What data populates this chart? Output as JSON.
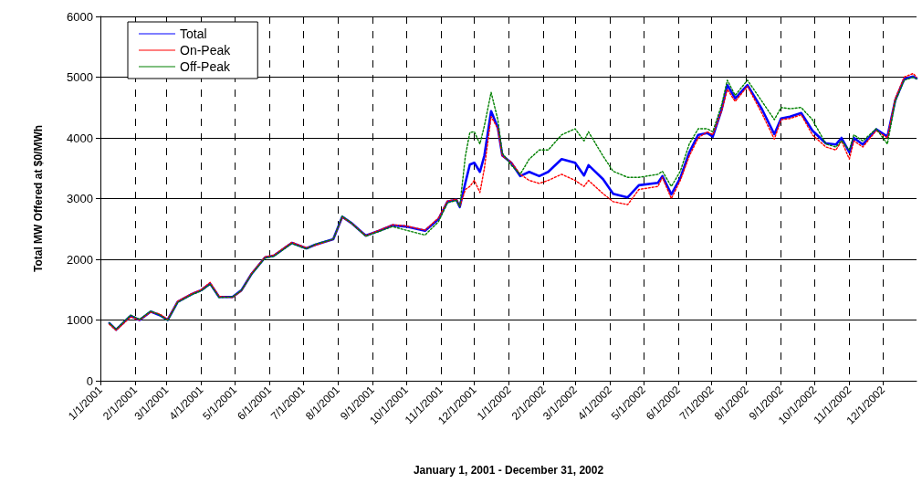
{
  "chart_data": {
    "type": "line",
    "xlabel": "January 1, 2001 - December 31, 2002",
    "ylabel": "Total MW Offered at $0/MWh",
    "x": [
      "2001-01-09",
      "2001-01-15",
      "2001-01-28",
      "2001-02-05",
      "2001-02-15",
      "2001-02-23",
      "2001-03-02",
      "2001-03-11",
      "2001-03-24",
      "2001-04-01",
      "2001-04-09",
      "2001-04-17",
      "2001-04-29",
      "2001-05-07",
      "2001-05-16",
      "2001-05-28",
      "2001-06-05",
      "2001-06-21",
      "2001-07-04",
      "2001-07-12",
      "2001-07-28",
      "2001-08-05",
      "2001-08-13",
      "2001-08-26",
      "2001-09-07",
      "2001-09-19",
      "2001-10-01",
      "2001-10-18",
      "2001-10-30",
      "2001-11-07",
      "2001-11-15",
      "2001-11-18",
      "2001-11-23",
      "2001-11-27",
      "2001-12-01",
      "2001-12-06",
      "2001-12-10",
      "2001-12-16",
      "2001-12-22",
      "2001-12-26",
      "2002-01-03",
      "2002-01-11",
      "2002-01-19",
      "2002-01-28",
      "2002-02-05",
      "2002-02-17",
      "2002-03-01",
      "2002-03-09",
      "2002-03-13",
      "2002-03-26",
      "2002-04-04",
      "2002-04-17",
      "2002-04-27",
      "2002-05-14",
      "2002-05-18",
      "2002-05-26",
      "2002-06-03",
      "2002-06-11",
      "2002-06-19",
      "2002-06-27",
      "2002-07-02",
      "2002-07-10",
      "2002-07-15",
      "2002-07-22",
      "2002-08-02",
      "2002-08-15",
      "2002-08-26",
      "2002-09-01",
      "2002-09-09",
      "2002-09-19",
      "2002-09-29",
      "2002-10-11",
      "2002-10-20",
      "2002-10-25",
      "2002-11-01",
      "2002-11-05",
      "2002-11-13",
      "2002-11-25",
      "2002-12-05",
      "2002-12-12",
      "2002-12-20",
      "2002-12-28",
      "2002-12-31"
    ],
    "series": [
      {
        "name": "Total",
        "color": "#0000ff",
        "line_style": "solid",
        "values": [
          950,
          840,
          1070,
          1000,
          1140,
          1080,
          1000,
          1300,
          1430,
          1490,
          1600,
          1380,
          1380,
          1490,
          1760,
          2030,
          2060,
          2270,
          2180,
          2240,
          2330,
          2700,
          2600,
          2390,
          2470,
          2560,
          2540,
          2470,
          2660,
          2950,
          2980,
          2860,
          3260,
          3560,
          3590,
          3440,
          3710,
          4440,
          4170,
          3710,
          3590,
          3370,
          3440,
          3370,
          3440,
          3650,
          3590,
          3380,
          3550,
          3320,
          3080,
          3020,
          3220,
          3260,
          3370,
          3070,
          3340,
          3760,
          4050,
          4080,
          4020,
          4470,
          4870,
          4650,
          4870,
          4470,
          4060,
          4320,
          4350,
          4410,
          4120,
          3910,
          3890,
          4000,
          3760,
          4000,
          3890,
          4140,
          4020,
          4620,
          4970,
          5010,
          4980
        ]
      },
      {
        "name": "On-Peak",
        "color": "#ff0000",
        "line_style": "dotted",
        "values": [
          930,
          830,
          1050,
          1000,
          1130,
          1100,
          1010,
          1310,
          1440,
          1500,
          1620,
          1390,
          1370,
          1480,
          1770,
          2040,
          2070,
          2280,
          2190,
          2230,
          2330,
          2690,
          2600,
          2390,
          2480,
          2570,
          2550,
          2480,
          2680,
          2960,
          2990,
          2870,
          3150,
          3200,
          3300,
          3100,
          3500,
          4350,
          4150,
          3700,
          3600,
          3400,
          3300,
          3250,
          3300,
          3400,
          3300,
          3200,
          3300,
          3080,
          2950,
          2900,
          3150,
          3200,
          3350,
          3000,
          3300,
          3700,
          4000,
          4100,
          4050,
          4450,
          4800,
          4600,
          4850,
          4400,
          3980,
          4300,
          4320,
          4380,
          4050,
          3850,
          3800,
          3950,
          3650,
          3950,
          3850,
          4120,
          4000,
          4650,
          5000,
          5060,
          5000
        ]
      },
      {
        "name": "Off-Peak",
        "color": "#008000",
        "line_style": "dotted",
        "values": [
          950,
          850,
          1080,
          1010,
          1150,
          1080,
          990,
          1290,
          1420,
          1480,
          1590,
          1370,
          1380,
          1490,
          1750,
          2020,
          2050,
          2260,
          2170,
          2250,
          2330,
          2710,
          2600,
          2380,
          2460,
          2540,
          2480,
          2400,
          2620,
          2930,
          2970,
          2870,
          3700,
          4090,
          4100,
          3900,
          4200,
          4750,
          4300,
          3750,
          3550,
          3400,
          3650,
          3800,
          3800,
          4050,
          4150,
          3950,
          4100,
          3700,
          3450,
          3350,
          3350,
          3400,
          3450,
          3200,
          3450,
          3900,
          4150,
          4150,
          4100,
          4550,
          4950,
          4700,
          4950,
          4600,
          4300,
          4500,
          4480,
          4500,
          4300,
          3900,
          3850,
          3950,
          3800,
          4050,
          3950,
          4150,
          3900,
          4600,
          4950,
          5000,
          4970
        ]
      }
    ],
    "xlim": [
      "2001-01-01",
      "2002-12-31"
    ],
    "xticks": [
      {
        "value": "2001-01-01",
        "label": "1/1/2001"
      },
      {
        "value": "2001-02-01",
        "label": "2/1/2001"
      },
      {
        "value": "2001-03-01",
        "label": "3/1/2001"
      },
      {
        "value": "2001-04-01",
        "label": "4/1/2001"
      },
      {
        "value": "2001-05-01",
        "label": "5/1/2001"
      },
      {
        "value": "2001-06-01",
        "label": "6/1/2001"
      },
      {
        "value": "2001-07-01",
        "label": "7/1/2001"
      },
      {
        "value": "2001-08-01",
        "label": "8/1/2001"
      },
      {
        "value": "2001-09-01",
        "label": "9/1/2001"
      },
      {
        "value": "2001-10-01",
        "label": "10/1/2001"
      },
      {
        "value": "2001-11-01",
        "label": "11/1/2001"
      },
      {
        "value": "2001-12-01",
        "label": "12/1/2001"
      },
      {
        "value": "2002-01-01",
        "label": "1/1/2002"
      },
      {
        "value": "2002-02-01",
        "label": "2/1/2002"
      },
      {
        "value": "2002-03-01",
        "label": "3/1/2002"
      },
      {
        "value": "2002-04-01",
        "label": "4/1/2002"
      },
      {
        "value": "2002-05-01",
        "label": "5/1/2002"
      },
      {
        "value": "2002-06-01",
        "label": "6/1/2002"
      },
      {
        "value": "2002-07-01",
        "label": "7/1/2002"
      },
      {
        "value": "2002-08-01",
        "label": "8/1/2002"
      },
      {
        "value": "2002-09-01",
        "label": "9/1/2002"
      },
      {
        "value": "2002-10-01",
        "label": "10/1/2002"
      },
      {
        "value": "2002-11-01",
        "label": "11/1/2002"
      },
      {
        "value": "2002-12-01",
        "label": "12/1/2002"
      }
    ],
    "ylim": [
      0,
      6000
    ],
    "yticks": [
      0,
      1000,
      2000,
      3000,
      4000,
      5000,
      6000
    ],
    "grid": true,
    "legend": "top left",
    "marker": "none"
  }
}
